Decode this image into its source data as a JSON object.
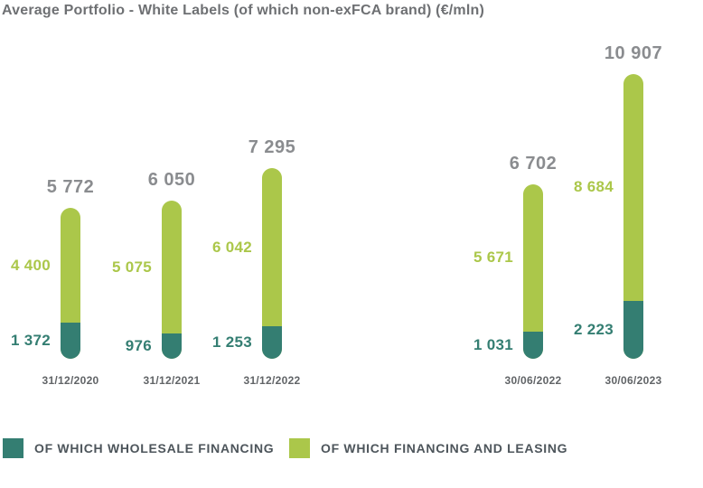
{
  "title": "Average Portfolio - White Labels (of which non-exFCA brand) (€/mln)",
  "colors": {
    "wholesale_teal": "#347e72",
    "financing_green": "#abc74a",
    "total_label_gray": "#8a8c8f",
    "title_gray": "#6e7073",
    "date_gray": "#616467",
    "legend_text": "#4d555b"
  },
  "chart_data": {
    "type": "bar",
    "stacked": true,
    "unit": "€/mln",
    "title": "Average Portfolio - White Labels (of which non-exFCA brand) (€/mln)",
    "legend_position": "bottom",
    "grid": false,
    "ylim": [
      0,
      11000
    ],
    "categories": [
      "31/12/2020",
      "31/12/2021",
      "31/12/2022",
      "30/06/2022",
      "30/06/2023"
    ],
    "category_groups": [
      [
        "31/12/2020",
        "31/12/2021",
        "31/12/2022"
      ],
      [
        "30/06/2022",
        "30/06/2023"
      ]
    ],
    "series": [
      {
        "name": "OF WHICH WHOLESALE FINANCING",
        "color": "#347e72",
        "values": [
          1372,
          976,
          1253,
          1031,
          2223
        ]
      },
      {
        "name": "OF WHICH FINANCING AND LEASING",
        "color": "#abc74a",
        "values": [
          4400,
          5075,
          6042,
          5671,
          8684
        ]
      }
    ],
    "totals": [
      5772,
      6050,
      7295,
      6702,
      10907
    ],
    "bars": [
      {
        "date": "31/12/2020",
        "total": 5772,
        "total_label": "5 772",
        "wholesale": 1372,
        "wholesale_label": "1 372",
        "leasing": 4400,
        "leasing_label": "4 400"
      },
      {
        "date": "31/12/2021",
        "total": 6050,
        "total_label": "6 050",
        "wholesale": 976,
        "wholesale_label": "976",
        "leasing": 5075,
        "leasing_label": "5 075"
      },
      {
        "date": "31/12/2022",
        "total": 7295,
        "total_label": "7 295",
        "wholesale": 1253,
        "wholesale_label": "1 253",
        "leasing": 6042,
        "leasing_label": "6 042"
      },
      {
        "date": "30/06/2022",
        "total": 6702,
        "total_label": "6 702",
        "wholesale": 1031,
        "wholesale_label": "1 031",
        "leasing": 5671,
        "leasing_label": "5 671"
      },
      {
        "date": "30/06/2023",
        "total": 10907,
        "total_label": "10 907",
        "wholesale": 2223,
        "wholesale_label": "2 223",
        "leasing": 8684,
        "leasing_label": "8 684"
      }
    ]
  },
  "legend": {
    "items": [
      {
        "label": "OF WHICH WHOLESALE FINANCING",
        "color": "#347e72"
      },
      {
        "label": "OF WHICH FINANCING AND LEASING",
        "color": "#abc74a"
      }
    ]
  }
}
